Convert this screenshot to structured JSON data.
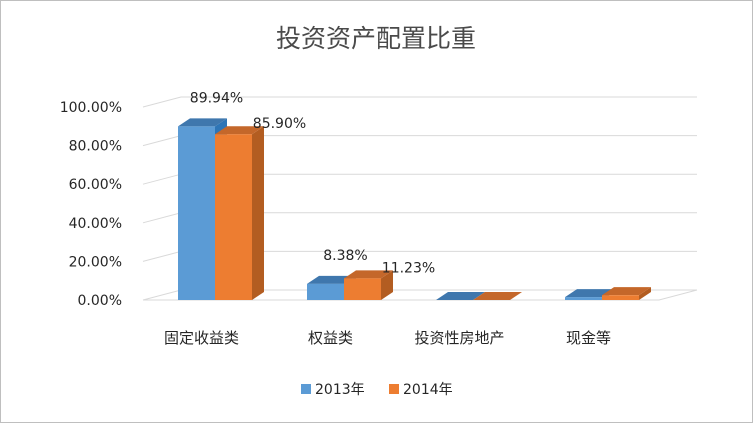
{
  "chart_data": {
    "type": "bar",
    "title": "投资资产配置比重",
    "categories": [
      "固定收益类",
      "权益类",
      "投资性房地产",
      "现金等"
    ],
    "series": [
      {
        "name": "2013年",
        "values": [
          89.94,
          8.38,
          0.0,
          1.5
        ],
        "labels": [
          "89.94%",
          "8.38%",
          "",
          ""
        ],
        "color": "#5b9bd5",
        "side_color": "#2e75b6",
        "top_color": "#3f77ad"
      },
      {
        "name": "2014年",
        "values": [
          85.9,
          11.23,
          0.0,
          2.5
        ],
        "labels": [
          "85.90%",
          "11.23%",
          "",
          ""
        ],
        "color": "#ed7d31",
        "side_color": "#b35d21",
        "top_color": "#c4672a"
      }
    ],
    "ylim": [
      0,
      100
    ],
    "yticks": [
      "0.00%",
      "20.00%",
      "40.00%",
      "60.00%",
      "80.00%",
      "100.00%"
    ],
    "grid": true,
    "legend": "bottom",
    "style": "3d-column"
  }
}
